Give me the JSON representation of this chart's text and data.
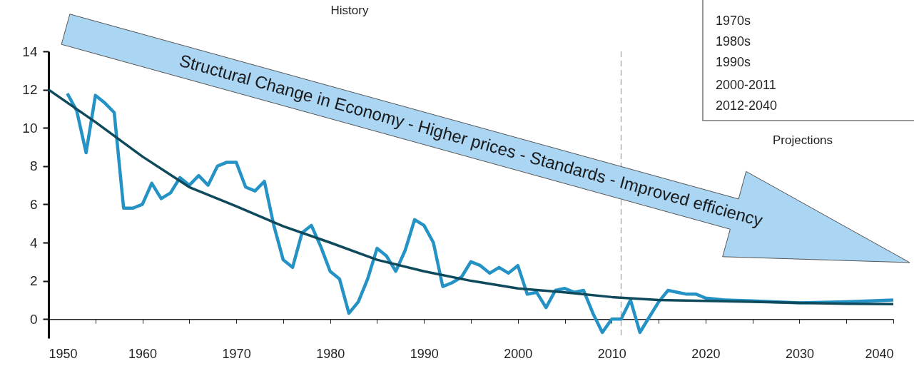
{
  "chart_data": {
    "type": "line",
    "x": [
      1952,
      1953,
      1954,
      1955,
      1956,
      1957,
      1958,
      1959,
      1960,
      1961,
      1962,
      1963,
      1964,
      1965,
      1966,
      1967,
      1968,
      1969,
      1970,
      1971,
      1972,
      1973,
      1974,
      1975,
      1976,
      1977,
      1978,
      1979,
      1980,
      1981,
      1982,
      1983,
      1984,
      1985,
      1986,
      1987,
      1988,
      1989,
      1990,
      1991,
      1992,
      1993,
      1994,
      1995,
      1996,
      1997,
      1998,
      1999,
      2000,
      2001,
      2002,
      2003,
      2004,
      2005,
      2006,
      2007,
      2008,
      2009,
      2010,
      2011,
      2012,
      2013,
      2014,
      2015,
      2016,
      2017,
      2018,
      2019,
      2020,
      2022,
      2025,
      2030,
      2035,
      2040
    ],
    "series": [
      {
        "color": "#2592c6",
        "line_style": "solid",
        "values": [
          11.8,
          10.9,
          8.7,
          11.7,
          11.3,
          10.8,
          5.8,
          5.8,
          6.0,
          7.1,
          6.3,
          6.6,
          7.4,
          7.0,
          7.5,
          7.0,
          8.0,
          8.2,
          8.2,
          6.9,
          6.7,
          7.2,
          4.9,
          3.1,
          2.7,
          4.5,
          4.9,
          3.8,
          2.5,
          2.1,
          0.3,
          0.9,
          2.1,
          3.7,
          3.3,
          2.5,
          3.6,
          5.2,
          4.9,
          4.0,
          1.7,
          1.9,
          2.2,
          3.0,
          2.8,
          2.4,
          2.7,
          2.4,
          2.8,
          1.3,
          1.4,
          0.6,
          1.5,
          1.6,
          1.4,
          1.5,
          0.3,
          -0.7,
          0.0,
          0.0,
          1.0,
          -0.7,
          0.1,
          0.9,
          1.5,
          1.4,
          1.3,
          1.3,
          1.1,
          1.0,
          0.95,
          0.85,
          0.9,
          1.0
        ]
      },
      {
        "type": "line",
        "color": "#0e4a5c",
        "line_style": "solid",
        "x": [
          1950,
          1955,
          1960,
          1965,
          1970,
          1975,
          1980,
          1985,
          1990,
          1995,
          2000,
          2005,
          2010,
          2015,
          2020,
          2025,
          2030,
          2035,
          2040
        ],
        "values": [
          12.0,
          10.3,
          8.5,
          6.9,
          5.9,
          4.85,
          4.0,
          3.1,
          2.5,
          2.0,
          1.6,
          1.4,
          1.15,
          1.0,
          0.95,
          0.9,
          0.85,
          0.8,
          0.78
        ]
      }
    ],
    "xlim": [
      1950,
      2040
    ],
    "xticks": [
      1950,
      {
        "value": 1955,
        "label": null
      },
      1960,
      {
        "value": 1965,
        "label": null
      },
      1970,
      {
        "value": 1975,
        "label": null
      },
      1980,
      {
        "value": 1985,
        "label": null
      },
      1990,
      {
        "value": 1995,
        "label": null
      },
      2000,
      {
        "value": 2005,
        "label": null
      },
      2010,
      {
        "value": 2015,
        "label": null
      },
      2020,
      {
        "value": 2025,
        "label": null
      },
      2030,
      {
        "value": 2035,
        "label": null
      },
      2040
    ],
    "ylim": [
      -1,
      14
    ],
    "yticks": [
      0,
      2,
      4,
      6,
      8,
      10,
      12,
      14
    ],
    "marker": "none",
    "ref_lines": [
      {
        "axis": "x",
        "value": 2011,
        "color": "#9a9a9a",
        "line_style": "dashed"
      }
    ],
    "annotations": [
      "Structural Change in Economy - Higher prices - Standards - Improved efficiency",
      "History",
      "Projections",
      "1970s",
      "1980s",
      "1990s",
      "2000-2011",
      "2012-2040"
    ]
  }
}
